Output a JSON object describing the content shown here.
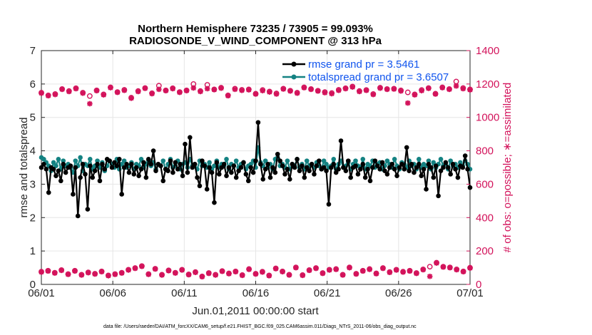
{
  "colors": {
    "rmse": "#000000",
    "spread": "#148282",
    "obs": "#d3135b",
    "legend_text": "#1155ee",
    "grid": "#e6e6e6"
  },
  "footer": "data file: /Users/raeder/DAI/ATM_forcXX/CAM6_setup/f.e21.FHIST_BGC.f09_025.CAM6assim.011/Diags_NTrS_2011-06/obs_diag_output.nc",
  "chart_data": {
    "type": "line",
    "title": "Northern Hemisphere 73235 / 73905 = 99.093%",
    "subtitle": "RADIOSONDE_V_WIND_COMPONENT @ 313 hPa",
    "xlabel": "Jun.01,2011 00:00:00 start",
    "ylabel": "rmse and totalspread",
    "ylabel_right": "# of obs: o=possible; ∗=assimilated",
    "xlim": [
      0,
      30
    ],
    "ylim": [
      0,
      7
    ],
    "ylim_right": [
      0,
      1400
    ],
    "xticks": [
      0,
      5,
      10,
      15,
      20,
      25,
      30
    ],
    "xtick_labels": [
      "06/01",
      "06/06",
      "06/11",
      "06/16",
      "06/21",
      "06/26",
      "07/01"
    ],
    "yticks": [
      0,
      1,
      2,
      3,
      4,
      5,
      6,
      7
    ],
    "yticks_right": [
      0,
      200,
      400,
      600,
      800,
      1000,
      1200,
      1400
    ],
    "legend_position": "top-right",
    "series": [
      {
        "name": "rmse grand pr = 3.5461",
        "axis": "left",
        "marker": "circle",
        "values": [
          3.5,
          3.6,
          3.45,
          2.75,
          3.5,
          3.45,
          3.25,
          3.4,
          3.1,
          3.6,
          3.35,
          3.5,
          3.55,
          2.7,
          3.5,
          2.05,
          3.2,
          3.6,
          3.3,
          2.25,
          3.55,
          3.2,
          3.4,
          3.6,
          3.1,
          3.6,
          3.45,
          3.75,
          3.7,
          3.5,
          3.65,
          3.55,
          3.75,
          2.7,
          3.5,
          3.6,
          3.35,
          3.6,
          3.3,
          3.5,
          3.25,
          3.45,
          3.65,
          3.2,
          3.75,
          3.6,
          4.0,
          3.4,
          3.6,
          3.55,
          3.1,
          3.45,
          3.4,
          3.7,
          3.35,
          3.65,
          3.45,
          3.6,
          3.25,
          4.2,
          3.35,
          4.4,
          3.5,
          3.6,
          3.2,
          2.95,
          3.7,
          3.55,
          2.85,
          3.5,
          3.35,
          2.45,
          3.65,
          3.3,
          3.5,
          3.6,
          3.25,
          3.5,
          3.35,
          3.55,
          3.2,
          3.4,
          3.5,
          3.65,
          3.3,
          3.1,
          3.5,
          3.35,
          3.7,
          4.85,
          3.6,
          3.15,
          3.45,
          3.6,
          3.2,
          3.5,
          3.35,
          3.9,
          3.7,
          3.55,
          3.3,
          3.45,
          3.15,
          3.6,
          3.5,
          3.75,
          3.4,
          3.55,
          3.2,
          3.5,
          3.4,
          3.6,
          3.3,
          3.55,
          3.7,
          3.45,
          3.5,
          3.4,
          2.4,
          3.5,
          3.6,
          3.35,
          3.45,
          4.3,
          3.5,
          3.4,
          3.7,
          3.2,
          3.5,
          3.55,
          3.3,
          3.45,
          3.6,
          3.2,
          3.45,
          3.1,
          3.5,
          3.7,
          3.55,
          3.45,
          3.65,
          3.4,
          3.3,
          3.5,
          3.6,
          3.45,
          3.25,
          3.5,
          3.6,
          3.45,
          4.1,
          3.4,
          3.6,
          3.35,
          3.5,
          3.6,
          3.25,
          3.45,
          2.85,
          3.6,
          3.5,
          3.2,
          3.55,
          2.65,
          3.4,
          3.5,
          3.65,
          3.5,
          3.3,
          3.6,
          3.45,
          3.2,
          3.55,
          3.5,
          3.85,
          3.45,
          2.9
        ]
      },
      {
        "name": "totalspread grand pr = 3.6507",
        "axis": "left",
        "marker": "circle",
        "values": [
          3.8,
          3.75,
          3.65,
          3.55,
          3.4,
          3.65,
          3.55,
          3.75,
          3.45,
          3.7,
          3.55,
          3.6,
          3.5,
          3.35,
          3.7,
          3.55,
          3.8,
          3.4,
          3.6,
          3.55,
          3.75,
          3.45,
          3.55,
          3.7,
          3.5,
          3.65,
          3.4,
          3.55,
          3.7,
          3.6,
          3.5,
          3.75,
          3.45,
          3.6,
          3.7,
          3.5,
          3.55,
          3.65,
          3.45,
          3.6,
          3.55,
          3.75,
          3.5,
          3.6,
          3.7,
          3.55,
          3.65,
          3.45,
          3.6,
          3.55,
          3.7,
          3.45,
          3.6,
          3.75,
          3.5,
          3.55,
          3.7,
          3.45,
          3.6,
          3.65,
          3.5,
          3.75,
          3.55,
          3.6,
          3.45,
          3.7,
          3.55,
          3.6,
          3.5,
          3.65,
          3.45,
          3.55,
          3.7,
          3.5,
          3.6,
          3.55,
          3.75,
          3.45,
          3.6,
          3.55,
          3.7,
          3.5,
          3.6,
          3.65,
          3.45,
          3.55,
          3.6,
          3.7,
          3.5,
          4.1,
          3.65,
          3.55,
          3.7,
          3.5,
          3.6,
          3.45,
          3.75,
          3.8,
          3.55,
          3.6,
          3.5,
          3.7,
          3.45,
          3.6,
          3.55,
          3.75,
          3.5,
          3.6,
          3.45,
          3.7,
          3.55,
          3.6,
          3.5,
          3.65,
          3.55,
          3.45,
          3.7,
          3.6,
          3.5,
          3.55,
          3.75,
          3.45,
          3.6,
          3.7,
          3.5,
          3.55,
          3.65,
          3.45,
          3.6,
          3.7,
          3.55,
          3.5,
          3.75,
          3.45,
          3.6,
          3.55,
          3.7,
          3.5,
          3.6,
          3.65,
          3.45,
          3.55,
          3.7,
          3.6,
          3.5,
          3.75,
          3.55,
          3.45,
          3.65,
          3.6,
          3.5,
          3.7,
          3.55,
          3.6,
          3.45,
          3.75,
          3.5,
          3.6,
          3.55,
          3.7,
          3.45,
          3.65,
          3.5,
          3.6,
          3.75,
          3.55,
          3.6,
          3.45,
          3.7,
          3.55,
          3.6,
          3.5,
          3.65,
          3.55,
          3.7,
          3.6,
          3.45
        ]
      },
      {
        "name": "possible obs (upper)",
        "axis": "right",
        "marker": "o",
        "values": [
          1148,
          1132,
          1140,
          1170,
          1158,
          1175,
          1148,
          1128,
          1162,
          1138,
          1180,
          1152,
          1165,
          1118,
          1158,
          1176,
          1145,
          1190,
          1162,
          1175,
          1152,
          1162,
          1200,
          1158,
          1195,
          1168,
          1178,
          1132,
          1172,
          1165,
          1168,
          1142,
          1164,
          1155,
          1144,
          1172,
          1160,
          1148,
          1180,
          1170,
          1160,
          1152,
          1146,
          1165,
          1175,
          1185,
          1158,
          1164,
          1140,
          1178,
          1170,
          1172,
          1162,
          1150,
          1138,
          1164,
          1176,
          1142,
          1180,
          1170,
          1215,
          1176,
          1168
        ]
      },
      {
        "name": "assimilated obs (upper)",
        "axis": "right",
        "marker": "*",
        "values": [
          1145,
          1130,
          1137,
          1168,
          1155,
          1172,
          1145,
          1082,
          1160,
          1135,
          1178,
          1150,
          1162,
          1115,
          1155,
          1174,
          1142,
          1168,
          1160,
          1172,
          1150,
          1160,
          1176,
          1155,
          1172,
          1166,
          1175,
          1130,
          1168,
          1162,
          1165,
          1140,
          1160,
          1152,
          1140,
          1170,
          1158,
          1145,
          1178,
          1168,
          1158,
          1148,
          1142,
          1162,
          1172,
          1182,
          1155,
          1162,
          1137,
          1175,
          1168,
          1170,
          1158,
          1086,
          1135,
          1160,
          1174,
          1140,
          1178,
          1168,
          1188,
          1172,
          1165
        ]
      },
      {
        "name": "possible obs (lower)",
        "axis": "right",
        "marker": "o",
        "values": [
          76,
          82,
          70,
          86,
          62,
          82,
          58,
          72,
          64,
          78,
          54,
          62,
          70,
          88,
          98,
          110,
          62,
          94,
          58,
          84,
          70,
          88,
          60,
          74,
          48,
          68,
          58,
          80,
          66,
          78,
          56,
          92,
          64,
          76,
          54,
          96,
          78,
          58,
          102,
          56,
          86,
          98,
          68,
          88,
          92,
          58,
          102,
          64,
          82,
          92,
          66,
          98,
          74,
          88,
          76,
          82,
          68,
          90,
          106,
          130,
          106,
          102,
          90,
          78,
          100
        ]
      },
      {
        "name": "assimilated obs (lower)",
        "axis": "right",
        "marker": "*",
        "values": [
          74,
          80,
          68,
          84,
          60,
          80,
          56,
          70,
          62,
          76,
          52,
          60,
          68,
          86,
          96,
          108,
          60,
          92,
          56,
          82,
          68,
          86,
          58,
          72,
          46,
          66,
          56,
          78,
          64,
          76,
          54,
          90,
          62,
          74,
          52,
          94,
          76,
          56,
          100,
          54,
          84,
          96,
          66,
          86,
          90,
          56,
          100,
          62,
          80,
          90,
          64,
          96,
          72,
          86,
          74,
          80,
          66,
          88,
          48,
          128,
          104,
          100,
          88,
          76,
          98
        ]
      }
    ]
  }
}
